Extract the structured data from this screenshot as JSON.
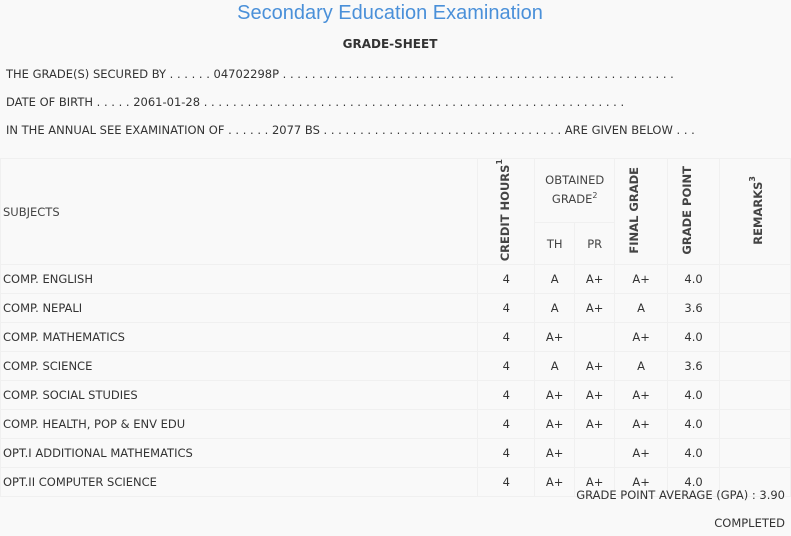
{
  "title": "Secondary Education Examination",
  "subtitle": "GRADE-SHEET",
  "info": {
    "secured_by_label": "THE GRADE(S) SECURED BY . . . . . .",
    "secured_by_value": "04702298P",
    "secured_by_dots": ". . . . . . . . . . . . . . . . . . . . . . . . . . . . . . . . . . . . . . . . . . . . . . . . . . . . . .",
    "dob_label": "DATE OF BIRTH . . . . .",
    "dob_value": "2061-01-28",
    "dob_dots": ". . . . . . . . . . . . . . . . . . . . . . . . . . . . . . . . . . . . . . . . . . . . . . . . . . . . . . . . . .",
    "exam_label": "IN THE ANNUAL SEE EXAMINATION OF . . . . . .",
    "exam_value": "2077 BS",
    "exam_dots": ". . . . . . . . . . . . . . . . . . . . . . . . . . . . . . . . . ARE GIVEN BELOW . . ."
  },
  "table": {
    "headers": {
      "subjects": "SUBJECTS",
      "credit": "CREDIT HOURS",
      "credit_sup": "1",
      "obtained": "OBTAINED GRADE",
      "obtained_sup": "2",
      "th": "TH",
      "pr": "PR",
      "final": "FINAL GRADE",
      "point": "GRADE POINT",
      "remarks": "REMARKS",
      "remarks_sup": "3"
    },
    "rows": [
      {
        "subject": "COMP. ENGLISH",
        "credit": "4",
        "th": "A",
        "pr": "A+",
        "final": "A+",
        "point": "4.0",
        "remarks": ""
      },
      {
        "subject": "COMP. NEPALI",
        "credit": "4",
        "th": "A",
        "pr": "A+",
        "final": "A",
        "point": "3.6",
        "remarks": ""
      },
      {
        "subject": "COMP. MATHEMATICS",
        "credit": "4",
        "th": "A+",
        "pr": "",
        "final": "A+",
        "point": "4.0",
        "remarks": ""
      },
      {
        "subject": "COMP. SCIENCE",
        "credit": "4",
        "th": "A",
        "pr": "A+",
        "final": "A",
        "point": "3.6",
        "remarks": ""
      },
      {
        "subject": "COMP. SOCIAL STUDIES",
        "credit": "4",
        "th": "A+",
        "pr": "A+",
        "final": "A+",
        "point": "4.0",
        "remarks": ""
      },
      {
        "subject": "COMP. HEALTH, POP & ENV EDU",
        "credit": "4",
        "th": "A+",
        "pr": "A+",
        "final": "A+",
        "point": "4.0",
        "remarks": ""
      },
      {
        "subject": "OPT.I ADDITIONAL MATHEMATICS",
        "credit": "4",
        "th": "A+",
        "pr": "",
        "final": "A+",
        "point": "4.0",
        "remarks": ""
      },
      {
        "subject": "OPT.II COMPUTER SCIENCE",
        "credit": "4",
        "th": "A+",
        "pr": "A+",
        "final": "A+",
        "point": "4.0",
        "remarks": ""
      }
    ]
  },
  "gpa": "GRADE POINT AVERAGE (GPA) : 3.90",
  "status": "COMPLETED"
}
